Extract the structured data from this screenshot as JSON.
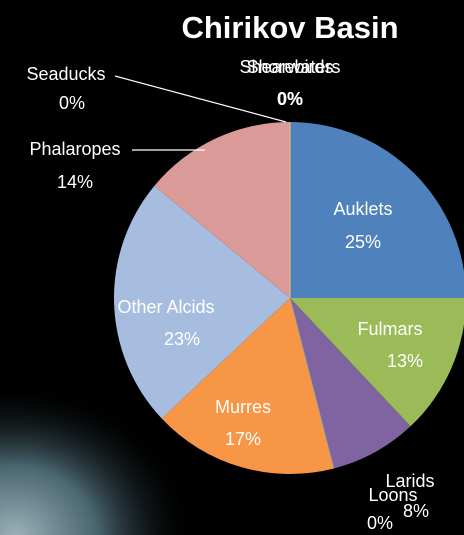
{
  "chart_data": {
    "type": "pie",
    "title": "Chirikov Basin",
    "categories": [
      "Auklets",
      "Fulmars",
      "Larids",
      "Loons",
      "Murres",
      "Other Alcids",
      "Phalaropes",
      "Seaducks",
      "Shearwaters",
      "Shorebirds"
    ],
    "values": [
      25,
      13,
      8,
      0,
      17,
      23,
      14,
      0,
      0,
      0
    ],
    "value_labels": [
      "25%",
      "13%",
      "8%",
      "0%",
      "17%",
      "23%",
      "14%",
      "0%",
      "0%",
      "0%"
    ],
    "colors": [
      "#4f81bd",
      "#9bbb59",
      "#8064a2",
      "#4bacc6",
      "#f79646",
      "#a7bde0",
      "#d99a98",
      "#c0504d",
      "#9bbb59",
      "#e0d080"
    ]
  }
}
